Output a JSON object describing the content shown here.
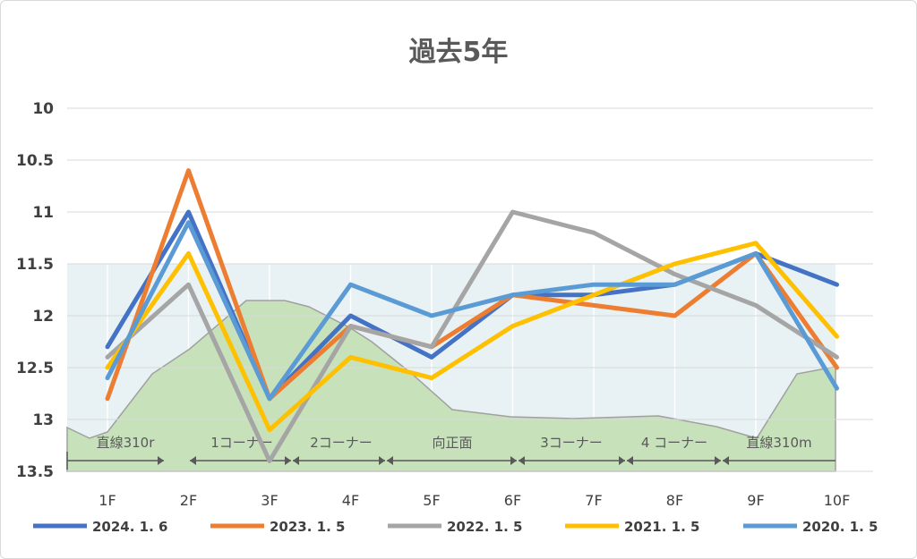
{
  "chart_data": {
    "type": "line",
    "title": "過去5年",
    "categories": [
      "1F",
      "2F",
      "3F",
      "4F",
      "5F",
      "6F",
      "7F",
      "8F",
      "9F",
      "10F"
    ],
    "y_ticks": [
      "10",
      "10.5",
      "11",
      "11.5",
      "12",
      "12.5",
      "13",
      "13.5"
    ],
    "ylim": [
      10,
      13.5
    ],
    "y_reversed": true,
    "grid": true,
    "legend_position": "bottom",
    "series": [
      {
        "name": "2024. 1. 6",
        "color": "#4472C4",
        "values": [
          12.3,
          11.0,
          12.8,
          12.0,
          12.4,
          11.8,
          11.8,
          11.7,
          11.4,
          11.7
        ]
      },
      {
        "name": "2023. 1. 5",
        "color": "#ED7D31",
        "values": [
          12.8,
          10.6,
          12.8,
          12.1,
          12.3,
          11.8,
          11.9,
          12.0,
          11.4,
          12.5
        ]
      },
      {
        "name": "2022. 1. 5",
        "color": "#A5A5A5",
        "values": [
          12.4,
          11.7,
          13.4,
          12.1,
          12.3,
          11.0,
          11.2,
          11.6,
          11.9,
          12.4
        ]
      },
      {
        "name": "2021. 1. 5",
        "color": "#FFC000",
        "values": [
          12.5,
          11.4,
          13.1,
          12.4,
          12.6,
          12.1,
          11.8,
          11.5,
          11.3,
          12.2
        ]
      },
      {
        "name": "2020. 1. 5",
        "color": "#5B9BD5",
        "values": [
          12.6,
          11.1,
          12.8,
          11.7,
          12.0,
          11.8,
          11.7,
          11.7,
          11.4,
          12.7
        ]
      }
    ],
    "sections": [
      "直線310r",
      "1コーナー",
      "2コーナー",
      "向正面",
      "3コーナー",
      "4 コーナー",
      "直線310m"
    ]
  }
}
